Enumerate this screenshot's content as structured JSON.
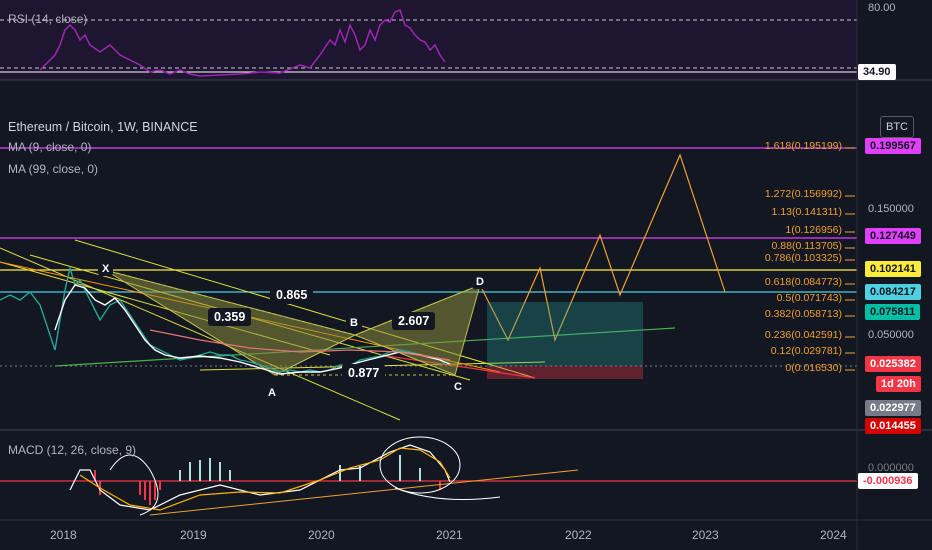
{
  "chart_data": {
    "type": "line",
    "instrument": "Ethereum / Bitcoin, 1W, BINANCE",
    "currency": "BTC",
    "indicators": {
      "rsi": {
        "label": "RSI (14, close)",
        "upper": "80.00",
        "value": "34.90"
      },
      "ma9": {
        "label": "MA (9, close, 0)"
      },
      "ma99": {
        "label": "MA (99, close, 0)"
      },
      "macd": {
        "label": "MACD (12, 26, close, 9)",
        "value": "-0.000936",
        "tick": "0.000000"
      }
    },
    "x_ticks": [
      "2018",
      "2019",
      "2020",
      "2021",
      "2022",
      "2023",
      "2024"
    ],
    "y_ticks": [
      "0.150000",
      "0.050000"
    ],
    "price_tags": [
      {
        "value": "0.199567",
        "color": "#e040fb",
        "text_color": "#131722"
      },
      {
        "value": "0.127449",
        "color": "#e040fb",
        "text_color": "#131722"
      },
      {
        "value": "0.102141",
        "color": "#ffeb3b",
        "text_color": "#131722"
      },
      {
        "value": "0.084217",
        "color": "#4dd0e1",
        "text_color": "#131722"
      },
      {
        "value": "0.075811",
        "color": "#00bfa5",
        "text_color": "#131722"
      },
      {
        "value": "0.025382",
        "color": "#f23645",
        "text_color": "#ffffff"
      },
      {
        "value": "1d 20h",
        "color": "#f23645",
        "text_color": "#ffffff"
      },
      {
        "value": "0.022977",
        "color": "#787b86",
        "text_color": "#ffffff"
      },
      {
        "value": "0.014455",
        "color": "#d50000",
        "text_color": "#ffffff"
      }
    ],
    "fib_levels": [
      {
        "ratio": "1.618",
        "price": "0.195199"
      },
      {
        "ratio": "1.272",
        "price": "0.156992"
      },
      {
        "ratio": "1.13",
        "price": "0.141311"
      },
      {
        "ratio": "1",
        "price": "0.126956"
      },
      {
        "ratio": "0.88",
        "price": "0.113705"
      },
      {
        "ratio": "0.786",
        "price": "0.103325"
      },
      {
        "ratio": "0.618",
        "price": "0.084773"
      },
      {
        "ratio": "0.5",
        "price": "0.071743"
      },
      {
        "ratio": "0.382",
        "price": "0.058713"
      },
      {
        "ratio": "0.236",
        "price": "0.042591"
      },
      {
        "ratio": "0.12",
        "price": "0.029781"
      },
      {
        "ratio": "0",
        "price": "0.016530"
      }
    ],
    "harmonic_points": [
      "X",
      "A",
      "B",
      "C",
      "D"
    ],
    "harmonic_ratios": [
      "0.359",
      "0.865",
      "0.877",
      "2.607"
    ]
  }
}
